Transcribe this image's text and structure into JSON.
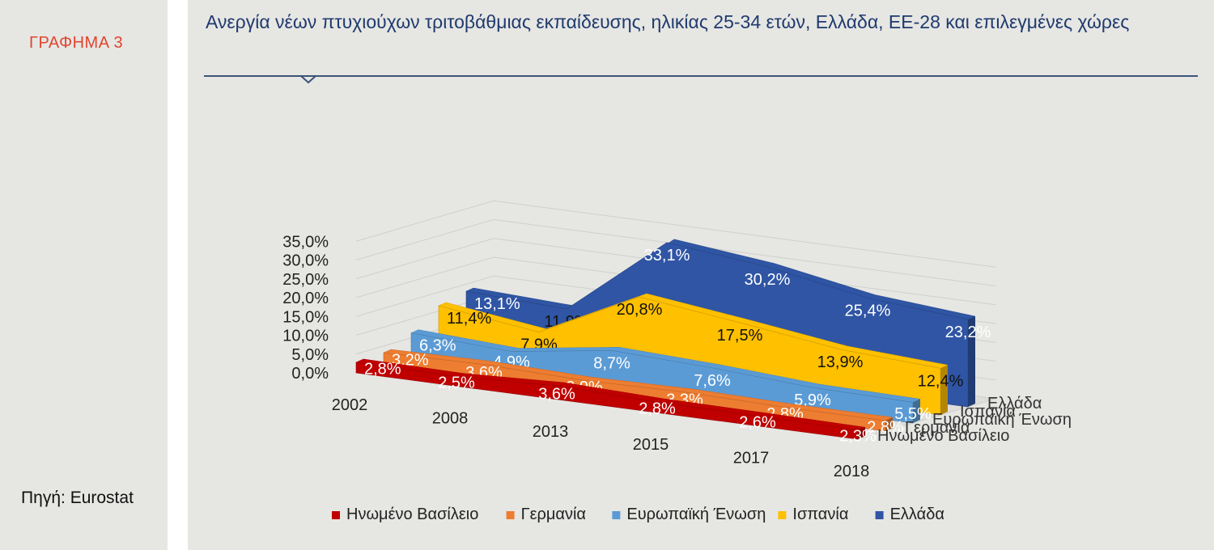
{
  "graph_label": "ΓΡΑΦΗΜΑ 3",
  "source": "Πηγή: Eurostat",
  "chart_data": {
    "type": "area",
    "title": "Ανεργία νέων πτυχιούχων τριτοβάθμιας εκπαίδευσης, ηλικίας 25-34 ετών, Ελλάδα, ΕΕ-28 και επιλεγμένες χώρες",
    "categories": [
      "2002",
      "2008",
      "2013",
      "2015",
      "2017",
      "2018"
    ],
    "ylim": [
      0,
      35
    ],
    "yticks": [
      "0,0%",
      "5,0%",
      "10,0%",
      "15,0%",
      "20,0%",
      "25,0%",
      "30,0%",
      "35,0%"
    ],
    "series": [
      {
        "name": "Ηνωμένο Βασίλειο",
        "values": [
          2.8,
          2.5,
          3.6,
          2.8,
          2.6,
          2.3
        ],
        "labels": [
          "2,8%",
          "2,5%",
          "3,6%",
          "2,8%",
          "2,6%",
          "2,3%"
        ],
        "color": "#c00000"
      },
      {
        "name": "Γερμανία",
        "values": [
          3.2,
          3.6,
          2.9,
          3.3,
          2.8,
          2.8
        ],
        "labels": [
          "3,2%",
          "3,6%",
          "2,9%",
          "3,3%",
          "2,8%",
          "2,8%"
        ],
        "color": "#ed7d31"
      },
      {
        "name": "Ευρωπαϊκή Ένωση",
        "values": [
          6.3,
          4.9,
          8.7,
          7.6,
          5.9,
          5.5
        ],
        "labels": [
          "6,3%",
          "4,9%",
          "8,7%",
          "7,6%",
          "5,9%",
          "5,5%"
        ],
        "color": "#5b9bd5"
      },
      {
        "name": "Ισπανία",
        "values": [
          11.4,
          7.9,
          20.8,
          17.5,
          13.9,
          12.4
        ],
        "labels": [
          "11,4%",
          "7,9%",
          "20,8%",
          "17,5%",
          "13,9%",
          "12,4%"
        ],
        "color": "#ffc000"
      },
      {
        "name": "Ελλάδα",
        "values": [
          13.1,
          11.9,
          33.1,
          30.2,
          25.4,
          23.2
        ],
        "labels": [
          "13,1%",
          "11,9%",
          "33,1%",
          "30,2%",
          "25,4%",
          "23,2%"
        ],
        "color": "#2f55a4"
      }
    ],
    "legend_position": "bottom",
    "grid": true
  }
}
